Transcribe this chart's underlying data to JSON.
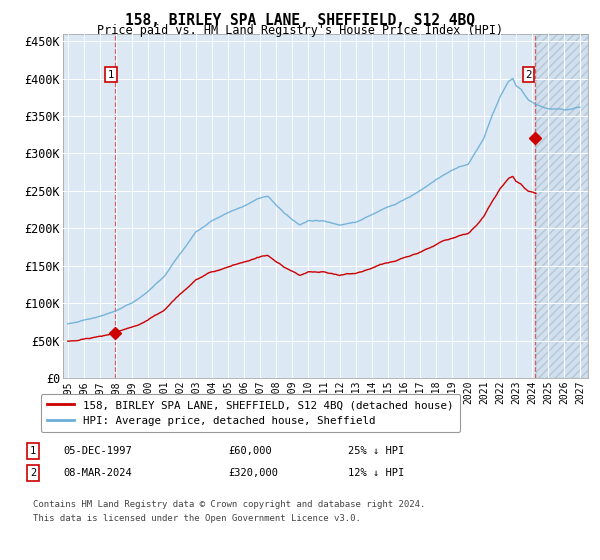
{
  "title": "158, BIRLEY SPA LANE, SHEFFIELD, S12 4BQ",
  "subtitle": "Price paid vs. HM Land Registry's House Price Index (HPI)",
  "plot_bg_color": "#dce9f5",
  "hpi_color": "#6baed6",
  "price_color": "#cc0000",
  "ylim": [
    0,
    460000
  ],
  "yticks": [
    0,
    50000,
    100000,
    150000,
    200000,
    250000,
    300000,
    350000,
    400000,
    450000
  ],
  "ytick_labels": [
    "£0",
    "£50K",
    "£100K",
    "£150K",
    "£200K",
    "£250K",
    "£300K",
    "£350K",
    "£400K",
    "£450K"
  ],
  "xlim_start": 1994.7,
  "xlim_end": 2027.5,
  "future_shade_start": 2024.25,
  "marker1_x": 1997.92,
  "marker1_y": 60000,
  "marker2_x": 2024.18,
  "marker2_y": 320000,
  "legend_line1": "158, BIRLEY SPA LANE, SHEFFIELD, S12 4BQ (detached house)",
  "legend_line2": "HPI: Average price, detached house, Sheffield",
  "annotation1_label": "1",
  "annotation1_date": "05-DEC-1997",
  "annotation1_price": "£60,000",
  "annotation1_hpi": "25% ↓ HPI",
  "annotation2_label": "2",
  "annotation2_date": "08-MAR-2024",
  "annotation2_price": "£320,000",
  "annotation2_hpi": "12% ↓ HPI",
  "footnote_line1": "Contains HM Land Registry data © Crown copyright and database right 2024.",
  "footnote_line2": "This data is licensed under the Open Government Licence v3.0.",
  "xtick_years": [
    1995,
    1996,
    1997,
    1998,
    1999,
    2000,
    2001,
    2002,
    2003,
    2004,
    2005,
    2006,
    2007,
    2008,
    2009,
    2010,
    2011,
    2012,
    2013,
    2014,
    2015,
    2016,
    2017,
    2018,
    2019,
    2020,
    2021,
    2022,
    2023,
    2024,
    2025,
    2026,
    2027
  ]
}
